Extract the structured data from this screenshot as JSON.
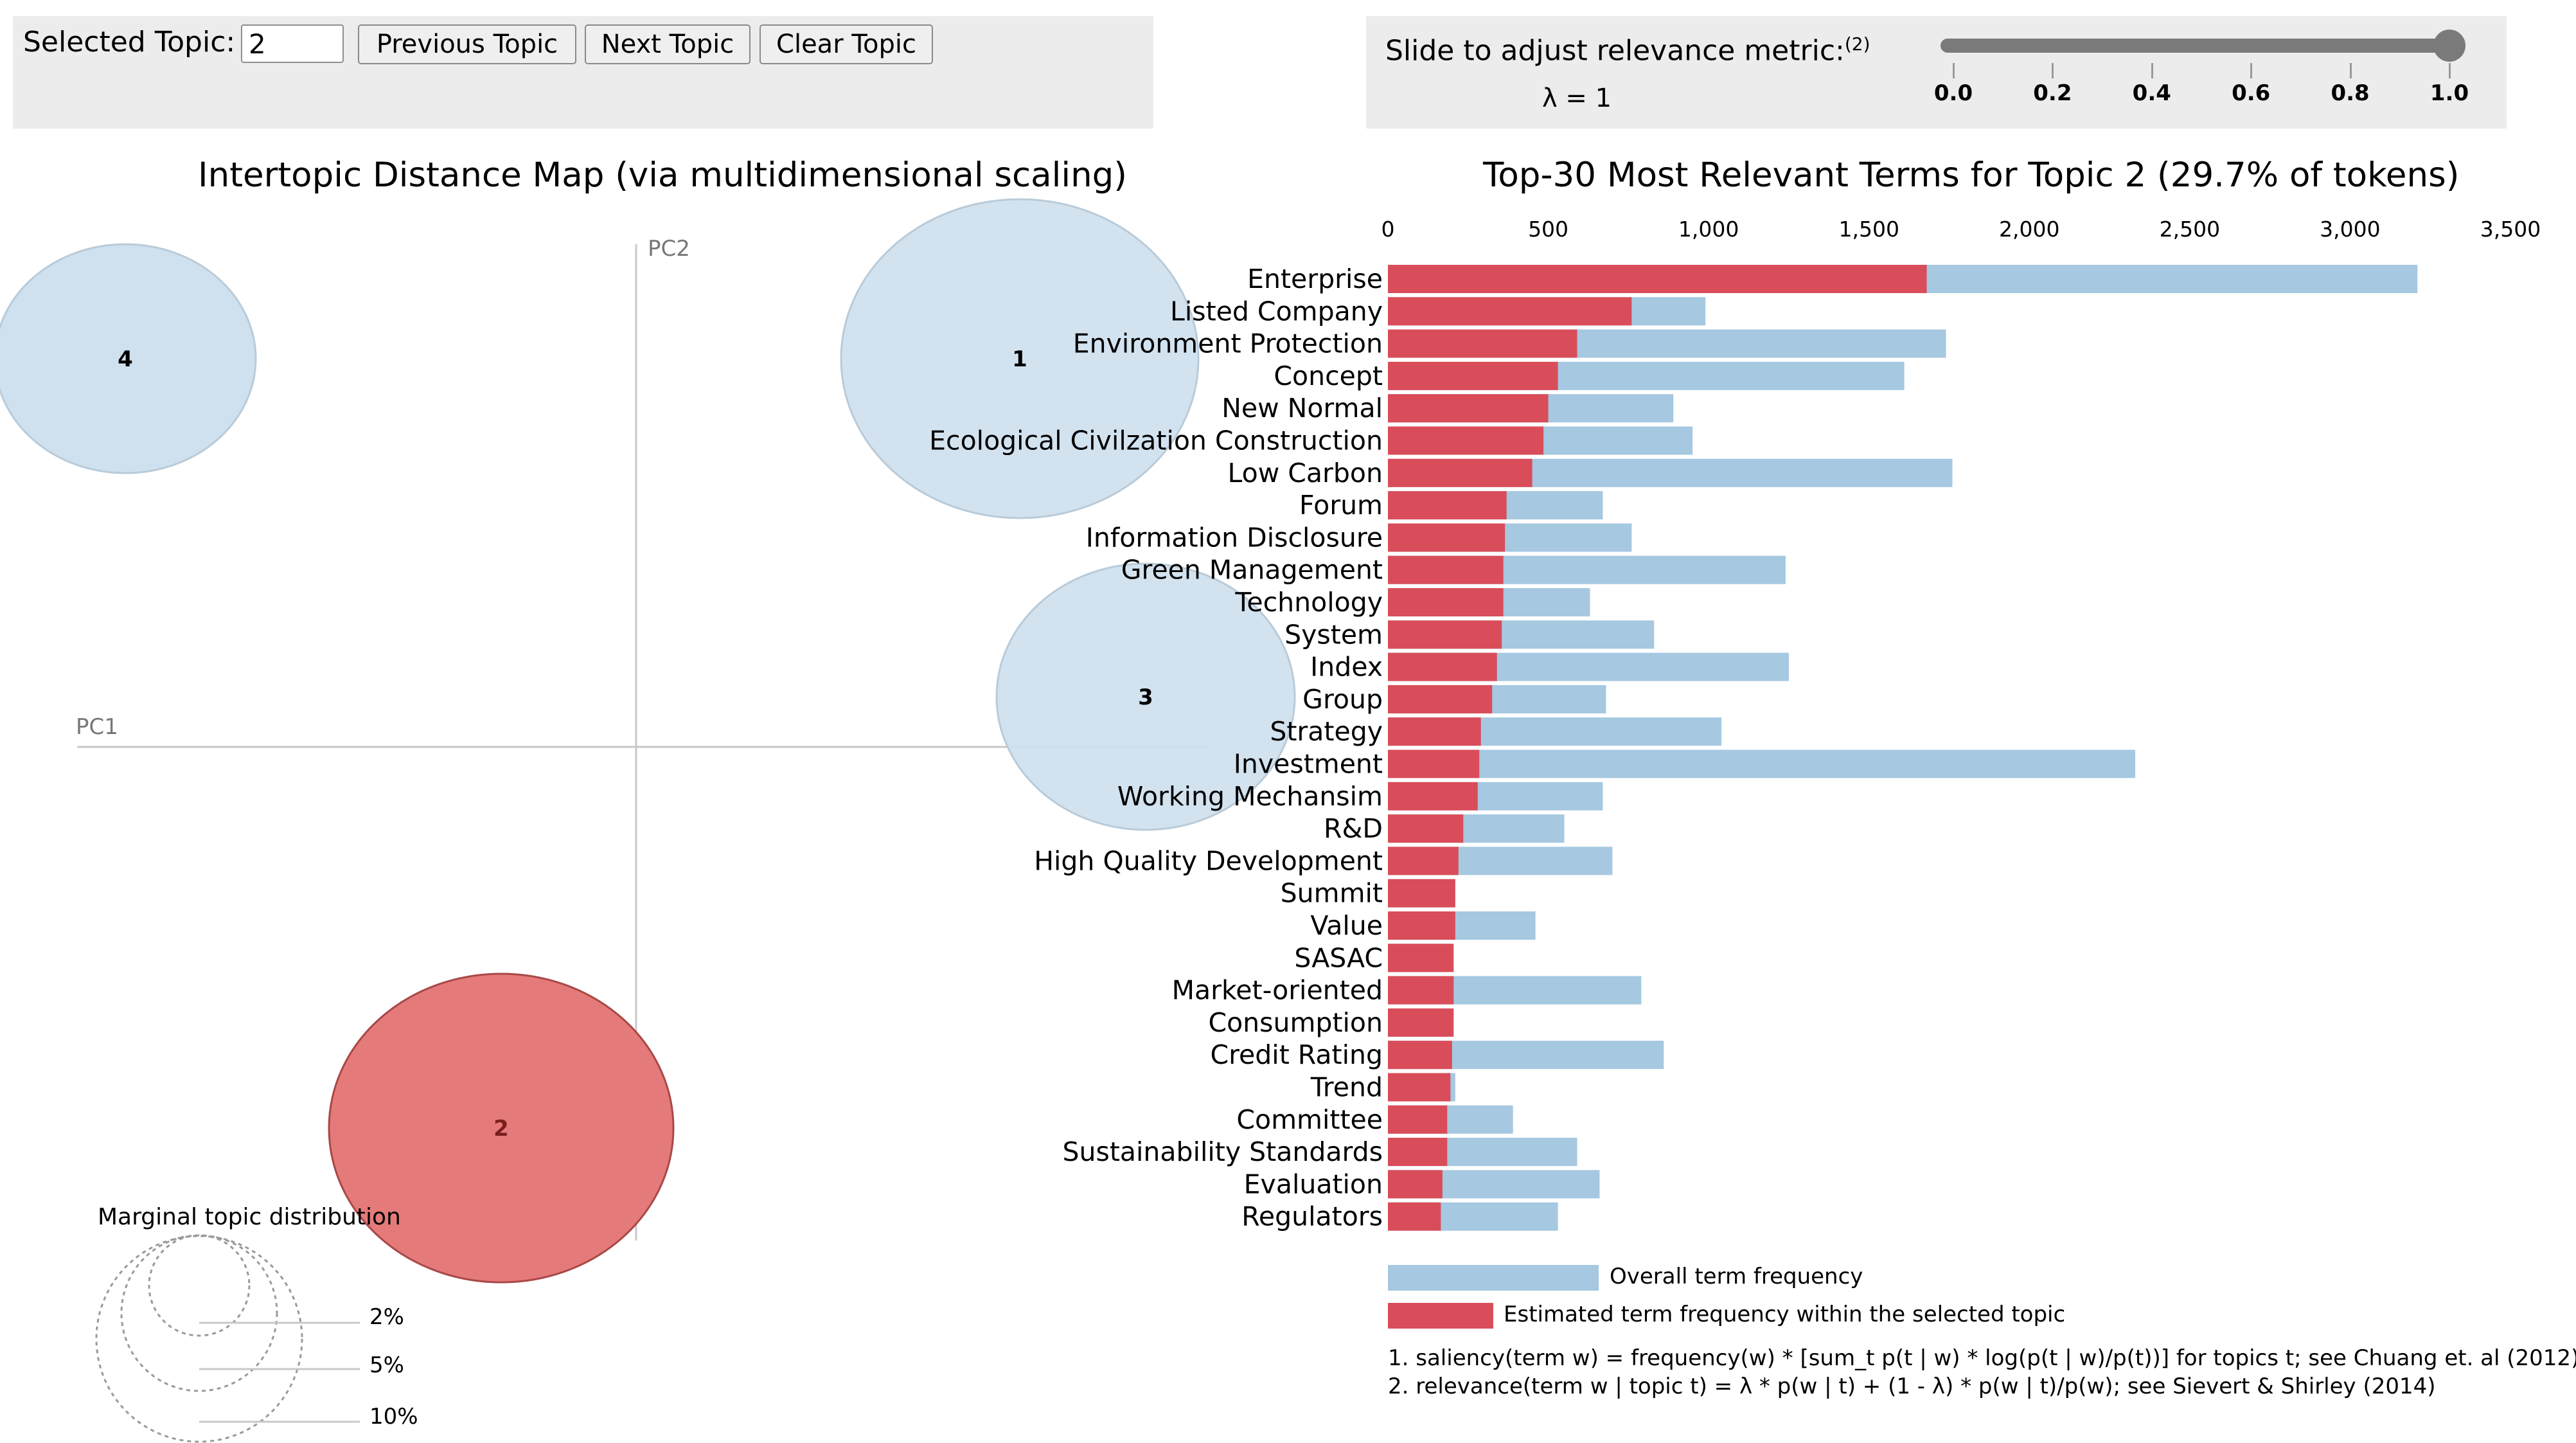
{
  "controls": {
    "selected_topic_label": "Selected Topic:",
    "selected_topic_value": "2",
    "previous_label": "Previous Topic",
    "next_label": "Next Topic",
    "clear_label": "Clear Topic"
  },
  "slider": {
    "title": "Slide to adjust relevance metric:",
    "footnote_ref": "(2)",
    "lambda_text": "λ = 1",
    "value": 1.0,
    "ticks": [
      "0.0",
      "0.2",
      "0.4",
      "0.6",
      "0.8",
      "1.0"
    ]
  },
  "map": {
    "title": "Intertopic Distance Map (via multidimensional scaling)",
    "pc1_label": "PC1",
    "pc2_label": "PC2",
    "topics": [
      {
        "id": "1",
        "selected": false
      },
      {
        "id": "2",
        "selected": true
      },
      {
        "id": "3",
        "selected": false
      },
      {
        "id": "4",
        "selected": false
      }
    ],
    "marginal_title": "Marginal topic distribution",
    "marginal_labels": [
      "2%",
      "5%",
      "10%"
    ]
  },
  "colors": {
    "overall": "#a6c8e1",
    "topic": "#d94d5a",
    "bubble": "#cfe0ee",
    "bubble_selected": "#e57a7a"
  },
  "chart_data": {
    "type": "bar",
    "title": "Top-30 Most Relevant Terms for Topic 2 (29.7% of tokens)",
    "xlim": [
      0,
      3500
    ],
    "xticks": [
      "0",
      "500",
      "1,000",
      "1,500",
      "2,000",
      "2,500",
      "3,000",
      "3,500"
    ],
    "categories": [
      "Enterprise",
      "Listed Company",
      "Environment Protection",
      "Concept",
      "New Normal",
      "Ecological Civilzation Construction",
      "Low Carbon",
      "Forum",
      "Information Disclosure",
      "Green Management",
      "Technology",
      "System",
      "Index",
      "Group",
      "Strategy",
      "Investment",
      "Working Mechansim",
      "R&D",
      "High Quality Development",
      "Summit",
      "Value",
      "SASAC",
      "Market-oriented",
      "Consumption",
      "Credit Rating",
      "Trend",
      "Committee",
      "Sustainability Standards",
      "Evaluation",
      "Regulators"
    ],
    "series": [
      {
        "name": "Overall term frequency",
        "values": [
          3210,
          990,
          1740,
          1610,
          890,
          950,
          1760,
          670,
          760,
          1240,
          630,
          830,
          1250,
          680,
          1040,
          2330,
          670,
          550,
          700,
          210,
          460,
          200,
          790,
          200,
          860,
          210,
          390,
          590,
          660,
          530
        ]
      },
      {
        "name": "Estimated term frequency within the selected topic",
        "values": [
          1680,
          760,
          590,
          530,
          500,
          485,
          450,
          370,
          365,
          360,
          360,
          355,
          340,
          325,
          290,
          285,
          280,
          235,
          220,
          210,
          210,
          205,
          205,
          205,
          200,
          195,
          185,
          185,
          170,
          165
        ]
      }
    ],
    "legend": [
      "Overall term frequency",
      "Estimated term frequency within the selected topic"
    ]
  },
  "notes": [
    "1. saliency(term w) = frequency(w) * [sum_t p(t | w) * log(p(t | w)/p(t))] for topics t; see Chuang et. al (2012)",
    "2. relevance(term w | topic t) = λ * p(w | t) + (1 - λ) * p(w | t)/p(w); see Sievert & Shirley (2014)"
  ]
}
